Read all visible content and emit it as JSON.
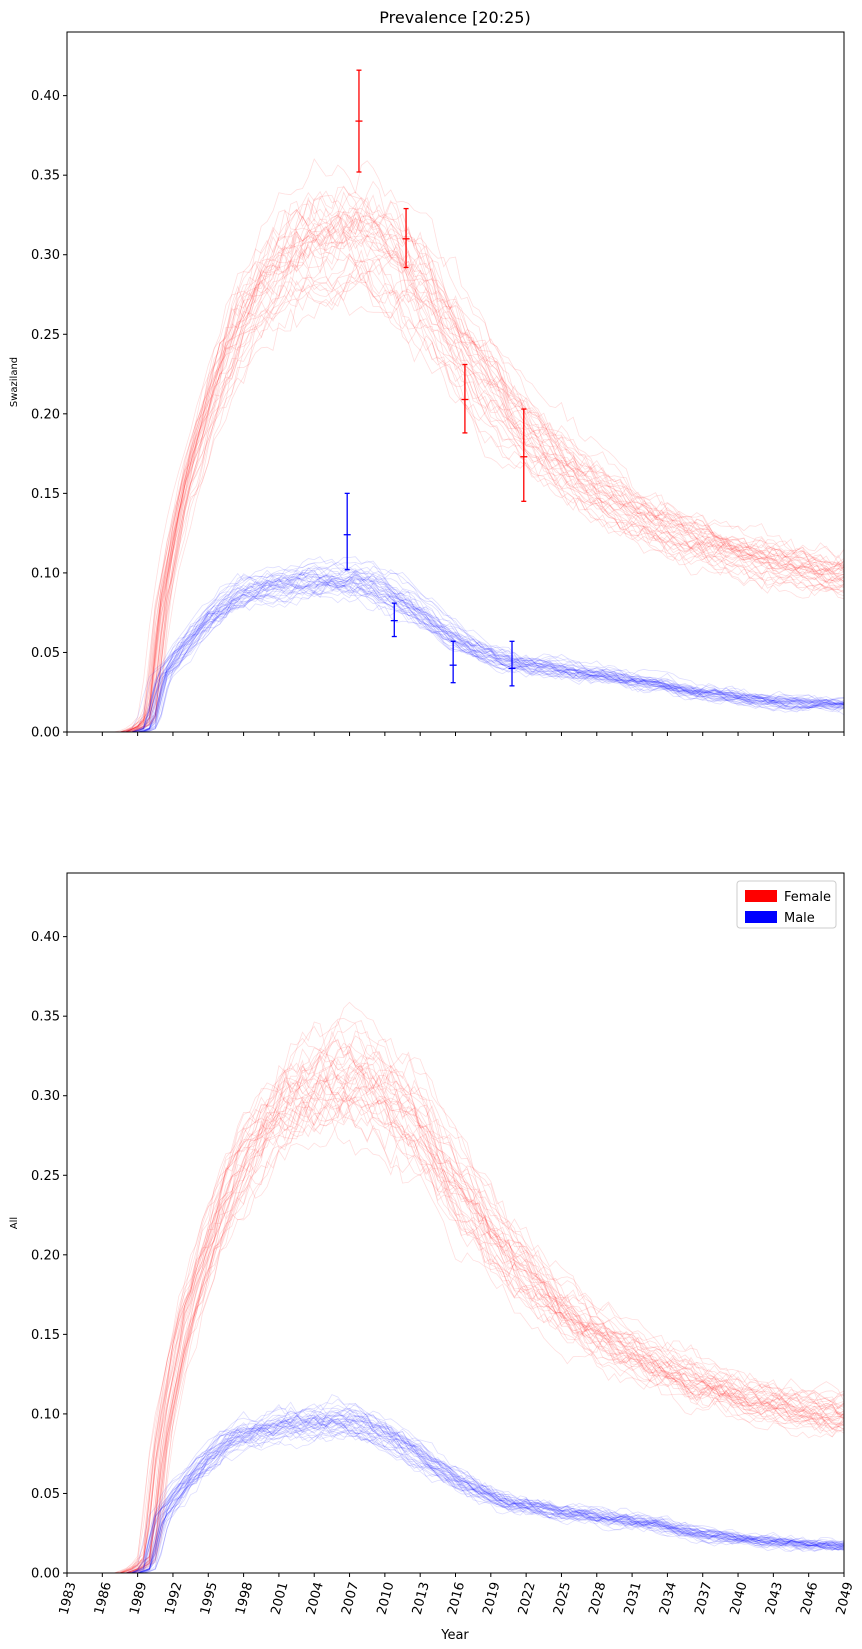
{
  "chart_data": {
    "type": "line",
    "title": "Prevalence [20:25)",
    "xlabel": "Year",
    "xlim": [
      1983,
      2049
    ],
    "ylim": [
      0,
      0.44
    ],
    "grid": false,
    "legend_placement": "top-right",
    "x_ticks": [
      "1983",
      "1986",
      "1989",
      "1992",
      "1995",
      "1998",
      "2001",
      "2004",
      "2007",
      "2010",
      "2013",
      "2016",
      "2019",
      "2022",
      "2025",
      "2028",
      "2031",
      "2034",
      "2037",
      "2040",
      "2043",
      "2046",
      "2049"
    ],
    "y_ticks": [
      "0.00",
      "0.05",
      "0.10",
      "0.15",
      "0.20",
      "0.25",
      "0.30",
      "0.35",
      "0.40"
    ],
    "legend": [
      {
        "label": "Female",
        "color": "#ff0000"
      },
      {
        "label": "Male",
        "color": "#0000ff"
      }
    ],
    "panels": [
      {
        "ylabel": "Swaziland",
        "series": [
          {
            "name": "Female",
            "color": "#ff0000",
            "x": [
              1983,
              1988,
              1989,
              1990,
              1991,
              1992,
              1993,
              1995,
              1997,
              1999,
              2001,
              2003,
              2005,
              2007,
              2009,
              2011,
              2013,
              2015,
              2017,
              2019,
              2021,
              2023,
              2025,
              2027,
              2030,
              2033,
              2036,
              2040,
              2044,
              2049
            ],
            "y": [
              0,
              0,
              0.003,
              0.01,
              0.08,
              0.12,
              0.155,
              0.205,
              0.245,
              0.272,
              0.292,
              0.304,
              0.308,
              0.31,
              0.305,
              0.294,
              0.279,
              0.258,
              0.236,
              0.216,
              0.197,
              0.181,
              0.168,
              0.157,
              0.143,
              0.13,
              0.121,
              0.112,
              0.105,
              0.099
            ]
          },
          {
            "name": "Male",
            "color": "#0000ff",
            "x": [
              1983,
              1989,
              1990,
              1991,
              1993,
              1995,
              1997,
              1999,
              2001,
              2003,
              2005,
              2007,
              2009,
              2011,
              2013,
              2015,
              2017,
              2019,
              2021,
              2023,
              2025,
              2027,
              2030,
              2033,
              2036,
              2040,
              2044,
              2049
            ],
            "y": [
              0,
              0,
              0.003,
              0.035,
              0.055,
              0.072,
              0.084,
              0.09,
              0.093,
              0.095,
              0.096,
              0.096,
              0.092,
              0.085,
              0.075,
              0.064,
              0.055,
              0.048,
              0.043,
              0.041,
              0.039,
              0.037,
              0.034,
              0.031,
              0.026,
              0.022,
              0.019,
              0.017
            ]
          }
        ],
        "observations": [
          {
            "series": "Female",
            "x": 2007.8,
            "y": 0.384,
            "low": 0.352,
            "high": 0.416
          },
          {
            "series": "Female",
            "x": 2011.8,
            "y": 0.31,
            "low": 0.292,
            "high": 0.329
          },
          {
            "series": "Female",
            "x": 2016.8,
            "y": 0.209,
            "low": 0.188,
            "high": 0.231
          },
          {
            "series": "Female",
            "x": 2021.8,
            "y": 0.173,
            "low": 0.145,
            "high": 0.203
          },
          {
            "series": "Male",
            "x": 2006.8,
            "y": 0.124,
            "low": 0.102,
            "high": 0.15
          },
          {
            "series": "Male",
            "x": 2010.8,
            "y": 0.07,
            "low": 0.06,
            "high": 0.081
          },
          {
            "series": "Male",
            "x": 2015.8,
            "y": 0.042,
            "low": 0.031,
            "high": 0.057
          },
          {
            "series": "Male",
            "x": 2020.8,
            "y": 0.04,
            "low": 0.029,
            "high": 0.057
          }
        ]
      },
      {
        "ylabel": "All",
        "series": [
          {
            "name": "Female",
            "color": "#ff0000",
            "x": [
              1983,
              1988,
              1989,
              1990,
              1991,
              1992,
              1993,
              1995,
              1997,
              1999,
              2001,
              2003,
              2005,
              2007,
              2009,
              2011,
              2013,
              2015,
              2017,
              2019,
              2021,
              2023,
              2025,
              2027,
              2030,
              2033,
              2036,
              2040,
              2044,
              2049
            ],
            "y": [
              0,
              0,
              0.003,
              0.01,
              0.08,
              0.12,
              0.155,
              0.205,
              0.245,
              0.272,
              0.292,
              0.304,
              0.308,
              0.31,
              0.305,
              0.294,
              0.279,
              0.258,
              0.236,
              0.216,
              0.197,
              0.181,
              0.168,
              0.157,
              0.143,
              0.13,
              0.121,
              0.112,
              0.105,
              0.099
            ]
          },
          {
            "name": "Male",
            "color": "#0000ff",
            "x": [
              1983,
              1989,
              1990,
              1991,
              1993,
              1995,
              1997,
              1999,
              2001,
              2003,
              2005,
              2007,
              2009,
              2011,
              2013,
              2015,
              2017,
              2019,
              2021,
              2023,
              2025,
              2027,
              2030,
              2033,
              2036,
              2040,
              2044,
              2049
            ],
            "y": [
              0,
              0,
              0.003,
              0.035,
              0.055,
              0.072,
              0.084,
              0.09,
              0.093,
              0.095,
              0.096,
              0.096,
              0.092,
              0.085,
              0.075,
              0.064,
              0.055,
              0.048,
              0.043,
              0.041,
              0.039,
              0.037,
              0.034,
              0.031,
              0.026,
              0.022,
              0.019,
              0.017
            ]
          }
        ],
        "observations": []
      }
    ]
  }
}
